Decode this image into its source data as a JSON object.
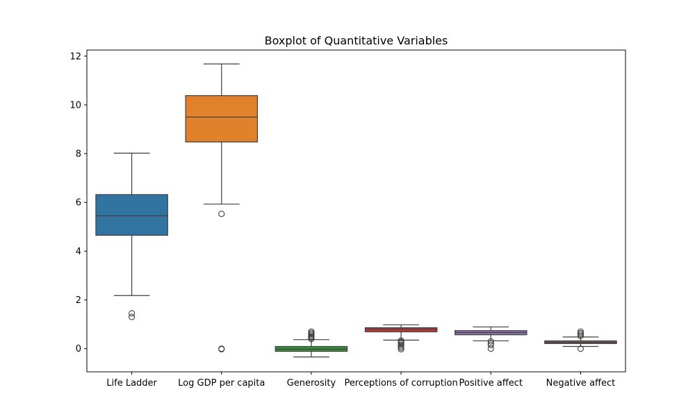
{
  "chart_data": {
    "type": "boxplot",
    "title": "Boxplot of Quantitative Variables",
    "xlabel": "",
    "ylabel": "",
    "ylim": [
      -0.95,
      12.25
    ],
    "yticks": [
      0,
      2,
      4,
      6,
      8,
      10,
      12
    ],
    "grid": false,
    "categories": [
      "Life Ladder",
      "Log GDP per capita",
      "Generosity",
      "Perceptions of corruption",
      "Positive affect",
      "Negative affect"
    ],
    "series": [
      {
        "category": "Life Ladder",
        "color": "#3274a1",
        "whisker_low": 2.18,
        "q1": 4.65,
        "median": 5.45,
        "q3": 6.32,
        "whisker_high": 8.02,
        "outliers": [
          1.45,
          1.3
        ]
      },
      {
        "category": "Log GDP per capita",
        "color": "#e1812c",
        "whisker_low": 5.93,
        "q1": 8.48,
        "median": 9.5,
        "q3": 10.38,
        "whisker_high": 11.68,
        "outliers": [
          5.53,
          0.0,
          -0.02
        ]
      },
      {
        "category": "Generosity",
        "color": "#3a923a",
        "whisker_low": -0.34,
        "q1": -0.11,
        "median": -0.02,
        "q3": 0.09,
        "whisker_high": 0.37,
        "outliers": [
          0.4,
          0.45,
          0.5,
          0.55,
          0.6,
          0.65,
          0.7
        ]
      },
      {
        "category": "Perceptions of corruption",
        "color": "#c03d3e",
        "whisker_low": 0.35,
        "q1": 0.69,
        "median": 0.8,
        "q3": 0.86,
        "whisker_high": 0.98,
        "outliers": [
          0.33,
          0.28,
          0.22,
          0.16,
          0.1,
          0.04,
          -0.02
        ]
      },
      {
        "category": "Positive affect",
        "color": "#9372b2",
        "whisker_low": 0.32,
        "q1": 0.57,
        "median": 0.66,
        "q3": 0.74,
        "whisker_high": 0.89,
        "outliers": [
          0.3,
          0.22,
          0.15,
          0.0
        ]
      },
      {
        "category": "Negative affect",
        "color": "#845b53",
        "whisker_low": 0.09,
        "q1": 0.21,
        "median": 0.26,
        "q3": 0.32,
        "whisker_high": 0.48,
        "outliers": [
          0.52,
          0.58,
          0.64,
          0.7,
          0.0
        ]
      }
    ]
  }
}
